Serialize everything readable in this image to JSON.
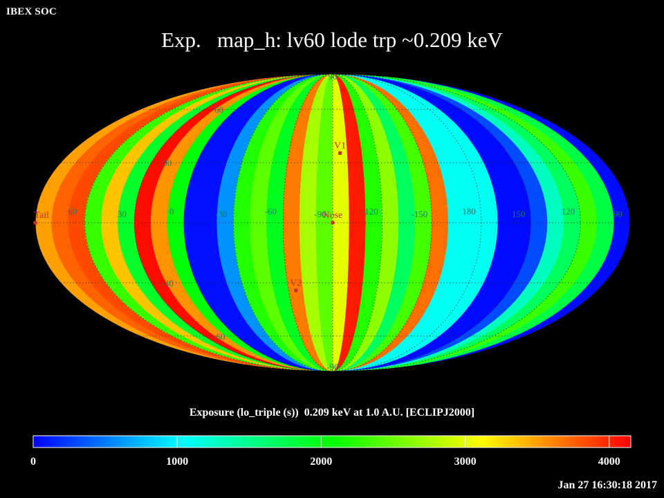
{
  "header": {
    "corner_label": "IBEX SOC",
    "title": "Exp.   map_h: lv60 lode trp ~0.209 keV"
  },
  "footer": {
    "timestamp": "Jan 27 16:30:18 2017"
  },
  "chart_data": {
    "type": "heatmap",
    "projection": "mollweide",
    "title": "Exp.   map_h: lv60 lode trp ~0.209 keV",
    "colorbar": {
      "label": "Exposure (lo_triple (s))  0.209 keV at 1.0 A.U. [ECLIPJ2000]",
      "min": 0,
      "max": 4150,
      "ticks": [
        0,
        1000,
        2000,
        3000,
        4000
      ],
      "tick_labels": [
        "0",
        "1000",
        "2000",
        "3000",
        "4000"
      ],
      "colors": [
        "#0000ff",
        "#00ffff",
        "#00ff00",
        "#ffff00",
        "#ff0000"
      ]
    },
    "longitude_labels": [
      "60",
      "30",
      "0",
      "-30",
      "-60",
      "-90",
      "-120",
      "-150",
      "180",
      "150",
      "120",
      "90"
    ],
    "latitude_labels": [
      "90",
      "60",
      "30",
      "-30",
      "-60",
      "-90"
    ],
    "markers": [
      {
        "name": "Nose",
        "lon": -100,
        "lat": 0,
        "color": "#c0302c"
      },
      {
        "name": "V1",
        "lon": -105,
        "lat": 35,
        "color": "#c0302c"
      },
      {
        "name": "V2",
        "lon": -75,
        "lat": -34,
        "color": "#c0302c"
      },
      {
        "name": "Tail",
        "lon": 80,
        "lat": 0,
        "color": "#c0302c"
      }
    ],
    "bands": [
      {
        "lon_from": 90,
        "lon_to": 80,
        "value": 1850
      },
      {
        "lon_from": 80,
        "lon_to": 70,
        "value": 3500
      },
      {
        "lon_from": 70,
        "lon_to": 60,
        "value": 3750
      },
      {
        "lon_from": 60,
        "lon_to": 50,
        "value": 3850
      },
      {
        "lon_from": 50,
        "lon_to": 40,
        "value": 2300
      },
      {
        "lon_from": 40,
        "lon_to": 30,
        "value": 3350
      },
      {
        "lon_from": 30,
        "lon_to": 20,
        "value": 1900
      },
      {
        "lon_from": 20,
        "lon_to": 10,
        "value": 4100
      },
      {
        "lon_from": 10,
        "lon_to": 0,
        "value": 3550
      },
      {
        "lon_from": 0,
        "lon_to": -10,
        "value": 2050
      },
      {
        "lon_from": -10,
        "lon_to": -20,
        "value": 60
      },
      {
        "lon_from": -20,
        "lon_to": -30,
        "value": 60
      },
      {
        "lon_from": -30,
        "lon_to": -40,
        "value": 600
      },
      {
        "lon_from": -40,
        "lon_to": -50,
        "value": 2200
      },
      {
        "lon_from": -50,
        "lon_to": -60,
        "value": 2450
      },
      {
        "lon_from": -60,
        "lon_to": -70,
        "value": 1950
      },
      {
        "lon_from": -70,
        "lon_to": -80,
        "value": 3650
      },
      {
        "lon_from": -80,
        "lon_to": -90,
        "value": 2750
      },
      {
        "lon_from": -90,
        "lon_to": -100,
        "value": 2450
      },
      {
        "lon_from": -100,
        "lon_to": -110,
        "value": 3000
      },
      {
        "lon_from": -110,
        "lon_to": -120,
        "value": 4050
      },
      {
        "lon_from": -120,
        "lon_to": -130,
        "value": 2200
      },
      {
        "lon_from": -130,
        "lon_to": -140,
        "value": 2650
      },
      {
        "lon_from": -140,
        "lon_to": -150,
        "value": 1700
      },
      {
        "lon_from": -150,
        "lon_to": -160,
        "value": 2350
      },
      {
        "lon_from": -160,
        "lon_to": -170,
        "value": 3700
      },
      {
        "lon_from": -170,
        "lon_to": -180,
        "value": 1100
      },
      {
        "lon_from": 180,
        "lon_to": 160,
        "value": 40
      },
      {
        "lon_from": 160,
        "lon_to": 140,
        "value": 40
      },
      {
        "lon_from": 140,
        "lon_to": 130,
        "value": 300
      },
      {
        "lon_from": 130,
        "lon_to": 120,
        "value": 1300
      },
      {
        "lon_from": 120,
        "lon_to": 110,
        "value": 1700
      },
      {
        "lon_from": 110,
        "lon_to": 100,
        "value": 2300
      },
      {
        "lon_from": 100,
        "lon_to": 90,
        "value": 1800
      }
    ]
  }
}
